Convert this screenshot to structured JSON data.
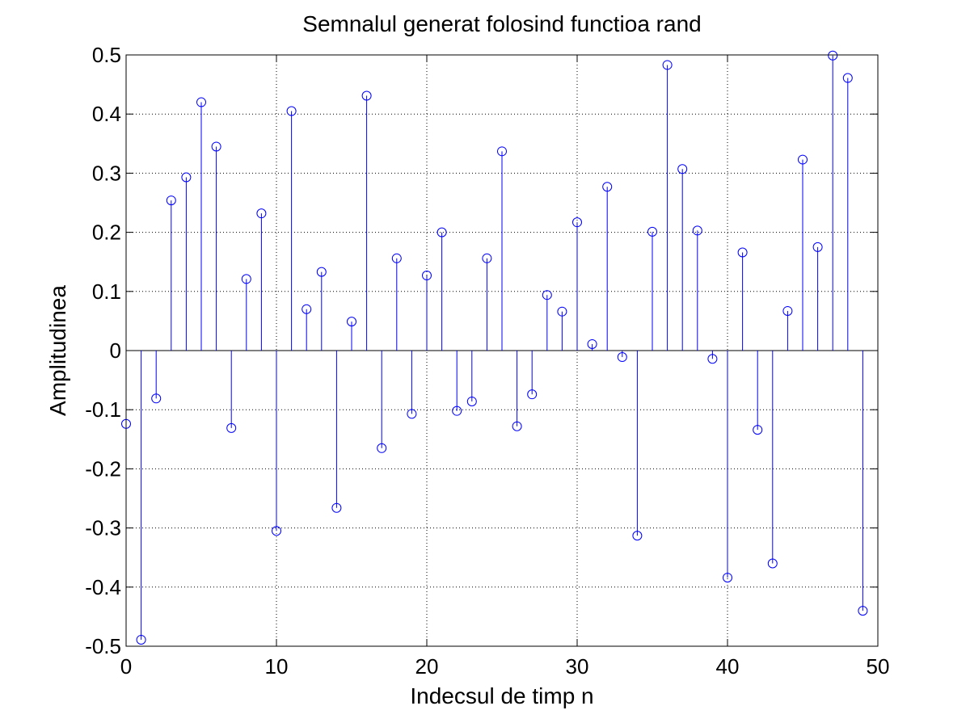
{
  "chart_data": {
    "type": "scatter",
    "style": "stem",
    "title": "Semnalul generat folosind functioa rand",
    "xlabel": "Indecsul de timp n",
    "ylabel": "Amplitudinea",
    "xlim": [
      0,
      50
    ],
    "ylim": [
      -0.5,
      0.5
    ],
    "grid": true,
    "xticks": [
      0,
      10,
      20,
      30,
      40,
      50
    ],
    "yticks": [
      -0.5,
      -0.4,
      -0.3,
      -0.2,
      -0.1,
      0,
      0.1,
      0.2,
      0.3,
      0.4,
      0.5
    ],
    "xtick_labels": [
      "0",
      "10",
      "20",
      "30",
      "40",
      "50"
    ],
    "ytick_labels": [
      "-0.5",
      "-0.4",
      "-0.3",
      "-0.2",
      "-0.1",
      "0",
      "0.1",
      "0.2",
      "0.3",
      "0.4",
      "0.5"
    ],
    "series": [
      {
        "color": "#0000ff",
        "marker": "circle",
        "x": [
          0,
          1,
          2,
          3,
          4,
          5,
          6,
          7,
          8,
          9,
          10,
          11,
          12,
          13,
          14,
          15,
          16,
          17,
          18,
          19,
          20,
          21,
          22,
          23,
          24,
          25,
          26,
          27,
          28,
          29,
          30,
          31,
          32,
          33,
          34,
          35,
          36,
          37,
          38,
          39,
          40,
          41,
          42,
          43,
          44,
          45,
          46,
          47,
          48,
          49
        ],
        "y": [
          -0.124,
          -0.489,
          -0.081,
          0.254,
          0.293,
          0.42,
          0.345,
          -0.131,
          0.121,
          0.232,
          -0.305,
          0.405,
          0.07,
          0.133,
          -0.266,
          0.049,
          0.431,
          -0.165,
          0.156,
          -0.107,
          0.127,
          0.2,
          -0.102,
          -0.086,
          0.156,
          0.337,
          -0.128,
          -0.074,
          0.094,
          0.066,
          0.217,
          0.011,
          0.277,
          -0.011,
          -0.313,
          0.201,
          0.483,
          0.307,
          0.203,
          -0.014,
          -0.384,
          0.166,
          -0.134,
          -0.36,
          0.067,
          0.323,
          0.175,
          0.499,
          0.461,
          -0.44
        ]
      }
    ]
  }
}
